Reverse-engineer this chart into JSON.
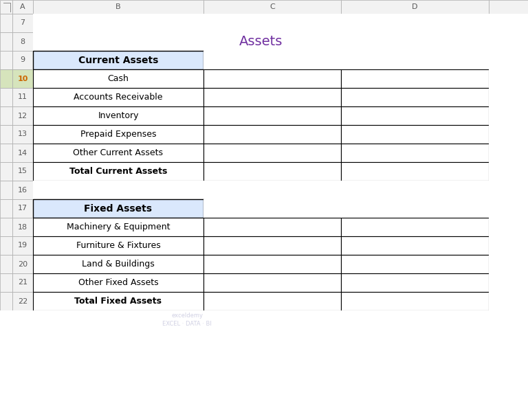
{
  "title": "Assets",
  "title_color": "#7030A0",
  "title_fontsize": 14,
  "background_color": "#FFFFFF",
  "grid_line_color": "#000000",
  "header_fill_color": "#DAE8FC",
  "col_header_labels": [
    "A",
    "B",
    "C",
    "D"
  ],
  "row_labels": [
    "7",
    "8",
    "9",
    "10",
    "11",
    "12",
    "13",
    "14",
    "15",
    "16",
    "17",
    "18",
    "19",
    "20",
    "21",
    "22"
  ],
  "current_items": [
    "Cash",
    "Accounts Receivable",
    "Inventory",
    "Prepaid Expenses",
    "Other Current Assets"
  ],
  "fixed_items": [
    "Machinery & Equipment",
    "Furniture & Fixtures",
    "Land & Buildings",
    "Other Fixed Assets"
  ],
  "col_header_row_label": "",
  "col_A_label": "A",
  "col_B_label": "B",
  "col_C_label": "C",
  "col_D_label": "D",
  "current_header": "Current Assets",
  "fixed_header": "Fixed Assets",
  "total_current": "Total Current Assets",
  "total_fixed": "Total Fixed Assets",
  "watermark_line1": "exceldemy",
  "watermark_line2": "EXCEL · DATA · BI",
  "edge_color_header": "#B8CCE4",
  "edge_color_cell": "#000000",
  "row_number_bg": "#F2F2F2",
  "row_number_fg": "#595959",
  "col_header_bg": "#F2F2F2",
  "col_header_fg": "#595959",
  "selected_row_bg": "#D6E4BC",
  "selected_row_number": "10"
}
